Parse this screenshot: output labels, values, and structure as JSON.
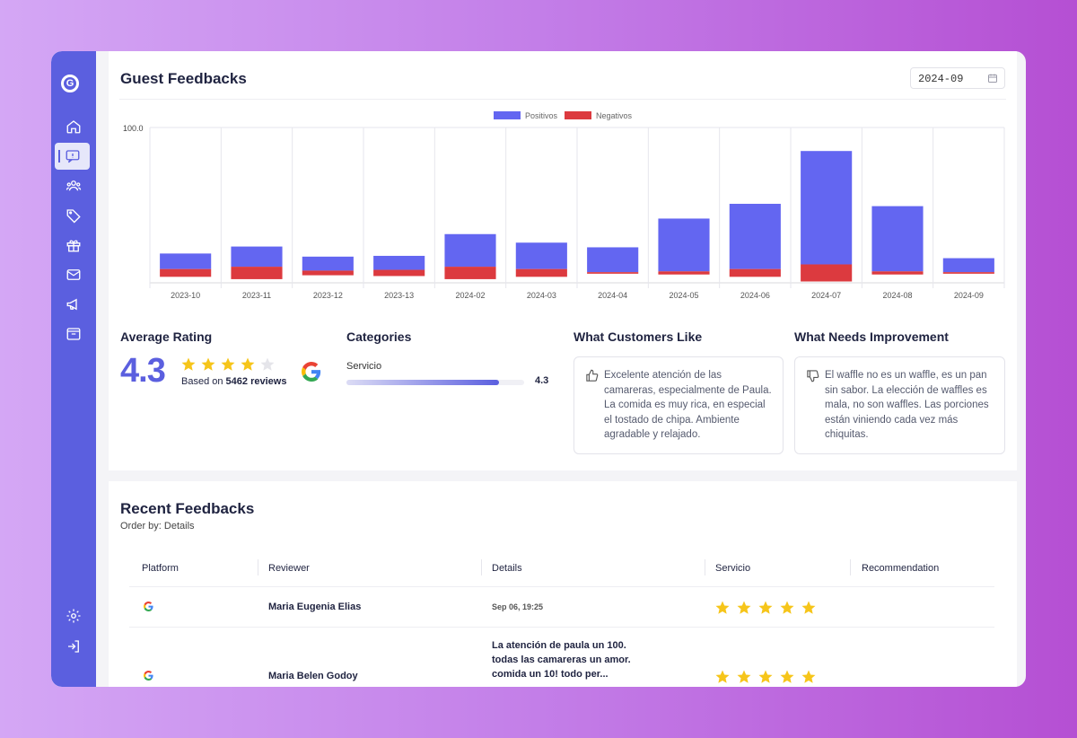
{
  "app": {
    "logo_letter": "G"
  },
  "sidebar": {
    "items": [
      {
        "icon": "home-icon"
      },
      {
        "icon": "feedback-icon",
        "active": true
      },
      {
        "icon": "users-icon"
      },
      {
        "icon": "tag-icon"
      },
      {
        "icon": "gift-icon"
      },
      {
        "icon": "mail-icon"
      },
      {
        "icon": "megaphone-icon"
      },
      {
        "icon": "inbox-icon"
      }
    ],
    "bottom": [
      {
        "icon": "settings-icon"
      },
      {
        "icon": "logout-icon"
      }
    ]
  },
  "header": {
    "title": "Guest Feedbacks",
    "date_value": "2024-09"
  },
  "chart_data": {
    "type": "bar",
    "stacked": true,
    "categories": [
      "2023-10",
      "2023-11",
      "2023-12",
      "2023-13",
      "2024-02",
      "2024-03",
      "2024-04",
      "2024-05",
      "2024-06",
      "2024-07",
      "2024-08",
      "2024-09"
    ],
    "series": [
      {
        "name": "Positivos",
        "color": "#6366f1",
        "values": [
          10,
          13,
          9,
          9,
          21,
          17,
          16,
          34,
          42,
          73,
          42,
          9
        ]
      },
      {
        "name": "Negativos",
        "color": "#dc3a3f",
        "values": [
          5,
          8,
          3,
          4,
          8,
          5,
          1,
          2,
          5,
          11,
          2,
          1
        ]
      }
    ],
    "ytick_label": "100.0",
    "ylim": [
      0,
      100
    ]
  },
  "rating": {
    "heading": "Average Rating",
    "value": "4.3",
    "stars": 4,
    "based_prefix": "Based on",
    "based_count": "5462 reviews"
  },
  "categories": {
    "heading": "Categories",
    "items": [
      {
        "label": "Servicio",
        "value": "4.3",
        "fraction": 0.86
      }
    ]
  },
  "likes": {
    "heading": "What Customers Like",
    "text": "Excelente atención de las camareras, especialmente de Paula. La comida es muy rica, en especial el tostado de chipa. Ambiente agradable y relajado."
  },
  "improve": {
    "heading": "What Needs Improvement",
    "text": "El waffle no es un waffle, es un pan sin sabor. La elección de waffles es mala, no son waffles. Las porciones están viniendo cada vez más chiquitas."
  },
  "recent": {
    "title": "Recent Feedbacks",
    "order_by": "Order by: Details",
    "columns": [
      "Platform",
      "Reviewer",
      "Details",
      "Servicio",
      "Recommendation"
    ],
    "rows": [
      {
        "platform": "google",
        "reviewer": "Maria Eugenia Elias",
        "details": "Sep 06, 19:25",
        "stars": 5
      },
      {
        "platform": "google",
        "reviewer": "Maria Belen Godoy",
        "details": "La atención de paula un 100. todas las camareras un amor. comida un 10! todo per...",
        "stars": 5
      }
    ]
  }
}
